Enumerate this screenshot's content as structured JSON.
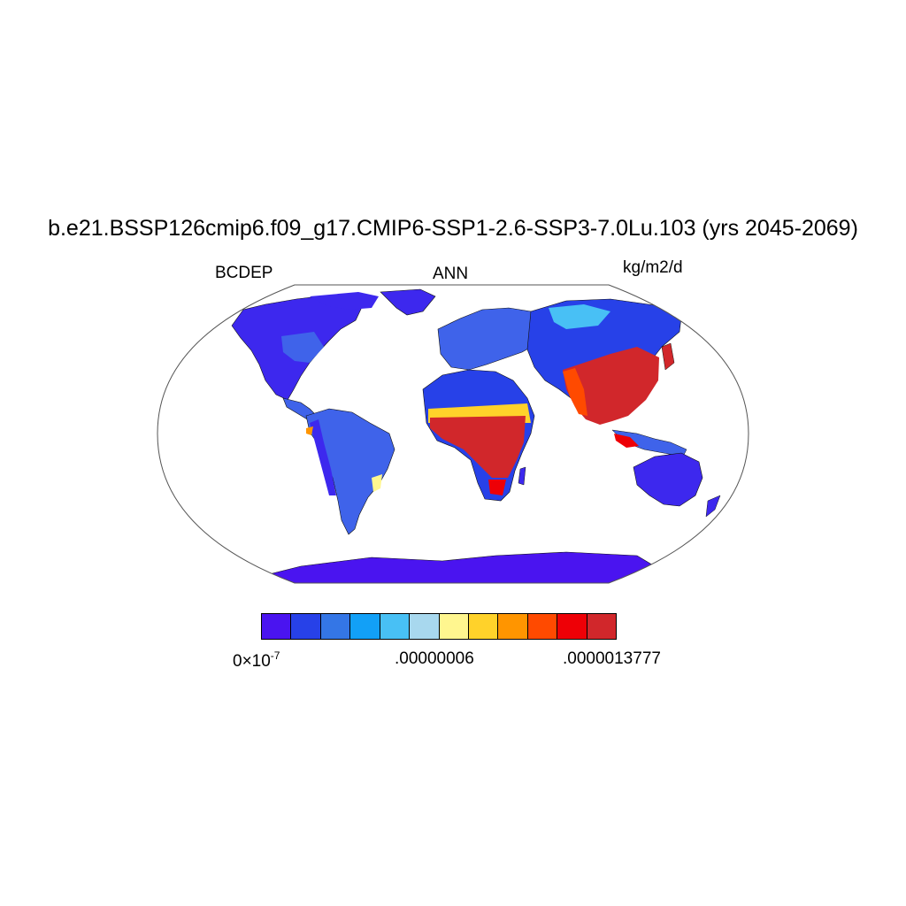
{
  "title": "b.e21.BSSP126cmip6.f09_g17.CMIP6-SSP1-2.6-SSP3-7.0Lu.103 (yrs 2045-2069)",
  "variable": "BCDEP",
  "season": "ANN",
  "units": "kg/m2/d",
  "colorbar": {
    "colors": [
      "#4a14f0",
      "#2741e8",
      "#3476e6",
      "#12a0f7",
      "#48c0f5",
      "#a8d8ee",
      "#fff68f",
      "#ffd22a",
      "#ff9500",
      "#ff4a00",
      "#ee0006",
      "#d1272b"
    ],
    "labels": {
      "low_base": "0×10",
      "low_exp": "-7",
      "mid": ".00000006",
      "high": ".0000013777"
    }
  },
  "map_colors": {
    "ocean": "#ffffff",
    "coast": "#111111"
  }
}
